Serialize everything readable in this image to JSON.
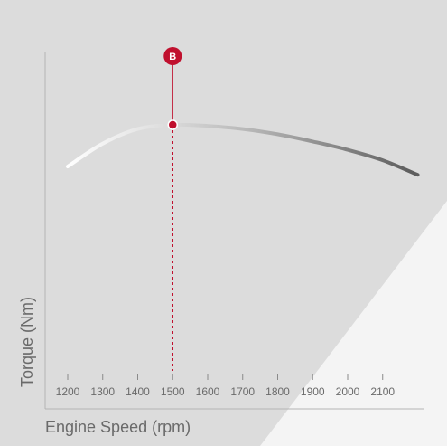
{
  "chart_data": {
    "type": "line",
    "title": "",
    "xlabel": "Engine Speed (rpm)",
    "ylabel": "Torque (Nm)",
    "x_ticks": [
      1200,
      1300,
      1400,
      1500,
      1600,
      1700,
      1800,
      1900,
      2000,
      2100
    ],
    "xlim": [
      1150,
      2250
    ],
    "y_values_shown": false,
    "grid": false,
    "series": [
      {
        "x": [
          1200,
          1300,
          1400,
          1500,
          1600,
          1700,
          1800,
          1900,
          2000,
          2100,
          2200
        ],
        "y": [
          0.8,
          0.91,
          0.98,
          1.0,
          0.995,
          0.98,
          0.955,
          0.92,
          0.88,
          0.83,
          0.76
        ]
      }
    ],
    "marker": {
      "label": "B",
      "x": 1500,
      "color": "#c0102e"
    }
  }
}
